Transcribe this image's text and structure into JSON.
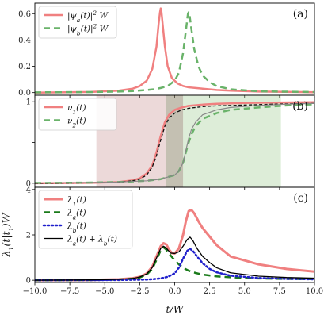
{
  "chart_data": [
    {
      "type": "line",
      "panel_label": "(a)",
      "xlim": [
        -10,
        10
      ],
      "ylim": [
        -0.02,
        0.68
      ],
      "yticks": [
        0.0,
        0.2,
        0.4,
        0.6
      ],
      "ytick_labels": [
        "0.0",
        "0.2",
        "0.4",
        "0.6"
      ],
      "grid": false,
      "legend_position": "top-left",
      "series": [
        {
          "name": "|ψa(t)|² W",
          "name_parts": [
            "|ψ",
            "a",
            "(t)|",
            "2",
            " W"
          ],
          "color": "#f08080",
          "style": "solid",
          "width": 2.5,
          "x": [
            -10,
            -6,
            -4,
            -3,
            -2.5,
            -2,
            -1.6,
            -1.3,
            -1.15,
            -1.05,
            -1.0,
            -0.95,
            -0.85,
            -0.7,
            -0.5,
            -0.2,
            0.2,
            0.6,
            1,
            1.5,
            2,
            3,
            4,
            6,
            10
          ],
          "y": [
            0.0,
            0.005,
            0.015,
            0.03,
            0.05,
            0.09,
            0.18,
            0.35,
            0.52,
            0.61,
            0.64,
            0.62,
            0.51,
            0.35,
            0.2,
            0.11,
            0.07,
            0.05,
            0.04,
            0.035,
            0.03,
            0.02,
            0.015,
            0.008,
            0.003
          ]
        },
        {
          "name": "|ψb(t)|² W",
          "name_parts": [
            "|ψ",
            "b",
            "(t)|",
            "2",
            " W"
          ],
          "color": "#6ab36a",
          "style": "dashed",
          "width": 2.5,
          "x": [
            -10,
            -6,
            -4,
            -3,
            -2,
            -1.5,
            -1,
            -0.5,
            0,
            0.3,
            0.6,
            0.8,
            0.95,
            1.0,
            1.05,
            1.2,
            1.4,
            1.7,
            2,
            2.5,
            3,
            4,
            6,
            10
          ],
          "y": [
            0.002,
            0.004,
            0.008,
            0.012,
            0.02,
            0.025,
            0.035,
            0.05,
            0.09,
            0.15,
            0.3,
            0.47,
            0.6,
            0.61,
            0.6,
            0.48,
            0.33,
            0.2,
            0.13,
            0.08,
            0.05,
            0.025,
            0.01,
            0.004
          ]
        }
      ]
    },
    {
      "type": "line",
      "panel_label": "(b)",
      "xlim": [
        -10,
        10
      ],
      "ylim": [
        -0.05,
        1.08
      ],
      "yticks": [
        0,
        0.5,
        1
      ],
      "ytick_labels": [
        "0",
        "",
        "1"
      ],
      "grid": false,
      "legend_position": "top-left",
      "shaded_regions": [
        {
          "x": [
            -5.6,
            -0.6
          ],
          "color": "#c99393",
          "opacity": 0.35
        },
        {
          "x": [
            -0.6,
            0.6
          ],
          "color": "#8a8266",
          "opacity": 0.5
        },
        {
          "x": [
            0.6,
            7.6
          ],
          "color": "#9fca8f",
          "opacity": 0.35
        }
      ],
      "series": [
        {
          "name": "ν1(t)",
          "name_parts": [
            "ν",
            "1",
            "(t)"
          ],
          "color": "#f08080",
          "style": "solid",
          "width": 2.5,
          "x": [
            -10,
            -6,
            -4,
            -3,
            -2.5,
            -2,
            -1.6,
            -1.3,
            -1.0,
            -0.7,
            -0.4,
            0,
            0.5,
            1,
            2,
            3,
            5,
            7,
            10
          ],
          "y": [
            0.0,
            0.005,
            0.015,
            0.035,
            0.06,
            0.12,
            0.22,
            0.38,
            0.58,
            0.75,
            0.84,
            0.9,
            0.93,
            0.95,
            0.965,
            0.975,
            0.985,
            0.99,
            0.995
          ]
        },
        {
          "name": "ν2(t)",
          "name_parts": [
            "ν",
            "2",
            "(t)"
          ],
          "color": "#6ab36a",
          "style": "dashed",
          "width": 2.5,
          "x": [
            -10,
            -6,
            -4,
            -2,
            -1,
            0,
            0.3,
            0.6,
            0.8,
            1.0,
            1.2,
            1.5,
            2,
            3,
            4,
            6,
            8,
            10
          ],
          "y": [
            0.003,
            0.008,
            0.015,
            0.03,
            0.05,
            0.1,
            0.15,
            0.25,
            0.38,
            0.5,
            0.6,
            0.7,
            0.79,
            0.86,
            0.9,
            0.93,
            0.955,
            0.97
          ]
        },
        {
          "name": "",
          "color": "#111111",
          "style": "dashed",
          "width": 1.3,
          "x": [
            -10,
            -6,
            -4,
            -3,
            -2.5,
            -2,
            -1.6,
            -1.3,
            -1.0,
            -0.7,
            -0.4,
            0,
            0.5,
            1,
            2,
            3,
            5,
            7,
            10
          ],
          "y": [
            0.0,
            0.005,
            0.012,
            0.03,
            0.05,
            0.1,
            0.2,
            0.34,
            0.53,
            0.7,
            0.8,
            0.86,
            0.9,
            0.92,
            0.94,
            0.95,
            0.96,
            0.97,
            0.98
          ]
        },
        {
          "name": "",
          "color": "#888888",
          "style": "solid",
          "width": 1.2,
          "x": [
            -10,
            -6,
            -4,
            -2,
            -1,
            0,
            0.3,
            0.6,
            0.8,
            1.0,
            1.2,
            1.5,
            2,
            3,
            4,
            6,
            8,
            10
          ],
          "y": [
            0.003,
            0.008,
            0.015,
            0.03,
            0.05,
            0.1,
            0.15,
            0.25,
            0.4,
            0.55,
            0.66,
            0.75,
            0.84,
            0.9,
            0.93,
            0.955,
            0.97,
            0.98
          ]
        }
      ]
    },
    {
      "type": "line",
      "panel_label": "(c)",
      "xlim": [
        -10,
        10
      ],
      "ylim": [
        -0.1,
        4.1
      ],
      "yticks": [
        0,
        2,
        4
      ],
      "ytick_labels": [
        "0",
        "2",
        "4"
      ],
      "xticks": [
        -10,
        -7.5,
        -5,
        -2.5,
        0,
        2.5,
        5,
        7.5,
        10
      ],
      "xtick_labels": [
        "−10.0",
        "−7.5",
        "−5.0",
        "−2.5",
        "0.0",
        "2.5",
        "5.0",
        "7.5",
        "10.0"
      ],
      "xlabel": "t/W",
      "ylabel": "λ1(t|t1)W",
      "grid": false,
      "legend_position": "top-left",
      "series": [
        {
          "name": "λ1(t)",
          "name_parts": [
            "λ",
            "1",
            "(t)"
          ],
          "color": "#f08080",
          "style": "solid",
          "width": 3,
          "x": [
            -10,
            -6,
            -4,
            -3,
            -2.5,
            -2,
            -1.6,
            -1.3,
            -1.0,
            -0.8,
            -0.6,
            -0.4,
            -0.2,
            0,
            0.3,
            0.6,
            0.8,
            1.0,
            1.2,
            1.4,
            1.7,
            2,
            3,
            4,
            6,
            8,
            10
          ],
          "y": [
            0.0,
            0.01,
            0.04,
            0.09,
            0.15,
            0.3,
            0.6,
            1.05,
            1.5,
            1.63,
            1.58,
            1.35,
            1.2,
            1.18,
            1.4,
            2.0,
            2.6,
            3.05,
            3.1,
            2.95,
            2.6,
            2.3,
            1.55,
            1.05,
            0.7,
            0.5,
            0.38
          ]
        },
        {
          "name": "λa(t)",
          "name_parts": [
            "λ",
            "a",
            "(t)"
          ],
          "color": "#1a7a1a",
          "style": "dashed",
          "width": 2.5,
          "x": [
            -10,
            -6,
            -4,
            -3,
            -2.5,
            -2,
            -1.6,
            -1.3,
            -1.0,
            -0.8,
            -0.6,
            -0.3,
            0,
            0.3,
            0.6,
            1.0,
            1.5,
            2,
            3,
            4,
            6,
            8,
            10
          ],
          "y": [
            0.0,
            0.01,
            0.03,
            0.07,
            0.12,
            0.25,
            0.5,
            0.9,
            1.32,
            1.45,
            1.35,
            1.1,
            0.88,
            0.7,
            0.55,
            0.42,
            0.32,
            0.25,
            0.17,
            0.13,
            0.08,
            0.06,
            0.05
          ]
        },
        {
          "name": "λb(t)",
          "name_parts": [
            "λ",
            "b",
            "(t)"
          ],
          "color": "#1f1fcc",
          "style": "dotted",
          "width": 2.5,
          "x": [
            -10,
            -6,
            -4,
            -2,
            -1.5,
            -1,
            -0.5,
            0,
            0.3,
            0.6,
            0.9,
            1.1,
            1.3,
            1.6,
            2,
            2.5,
            3,
            4,
            6,
            8,
            10
          ],
          "y": [
            0.0,
            0.005,
            0.01,
            0.03,
            0.05,
            0.08,
            0.15,
            0.3,
            0.55,
            0.95,
            1.3,
            1.38,
            1.3,
            1.05,
            0.75,
            0.5,
            0.35,
            0.2,
            0.1,
            0.06,
            0.04
          ]
        },
        {
          "name": "λa(t) + λb(t)",
          "name_parts": [
            "λ",
            "a",
            "(t) + λ",
            "b",
            "(t)"
          ],
          "color": "#000000",
          "style": "solid",
          "width": 1.3,
          "x": [
            -10,
            -6,
            -4,
            -3,
            -2.5,
            -2,
            -1.6,
            -1.3,
            -1.0,
            -0.8,
            -0.6,
            -0.3,
            0,
            0.3,
            0.6,
            0.9,
            1.1,
            1.3,
            1.6,
            2,
            2.5,
            3,
            4,
            6,
            8,
            10
          ],
          "y": [
            0.0,
            0.015,
            0.04,
            0.08,
            0.14,
            0.28,
            0.56,
            0.98,
            1.4,
            1.5,
            1.42,
            1.2,
            1.18,
            1.25,
            1.5,
            1.8,
            1.9,
            1.75,
            1.4,
            1.05,
            0.78,
            0.55,
            0.33,
            0.18,
            0.12,
            0.09
          ]
        }
      ]
    }
  ]
}
